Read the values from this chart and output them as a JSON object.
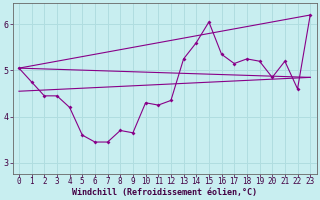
{
  "xlabel": "Windchill (Refroidissement éolien,°C)",
  "background_color": "#c8eef0",
  "grid_color": "#b0dde0",
  "line_color": "#880088",
  "ylim": [
    2.75,
    6.45
  ],
  "xlim": [
    -0.5,
    23.5
  ],
  "yticks": [
    3,
    4,
    5,
    6
  ],
  "xticks": [
    0,
    1,
    2,
    3,
    4,
    5,
    6,
    7,
    8,
    9,
    10,
    11,
    12,
    13,
    14,
    15,
    16,
    17,
    18,
    19,
    20,
    21,
    22,
    23
  ],
  "zigzag": {
    "x": [
      0,
      1,
      2,
      3,
      4,
      5,
      6,
      7,
      8,
      9,
      10,
      11,
      12,
      13,
      14,
      15,
      16,
      17,
      18,
      19,
      20,
      21,
      22,
      23
    ],
    "y": [
      5.05,
      4.75,
      4.45,
      4.45,
      4.2,
      3.6,
      3.45,
      3.45,
      3.7,
      3.65,
      4.3,
      4.25,
      4.35,
      5.25,
      5.6,
      6.05,
      5.35,
      5.15,
      5.25,
      5.2,
      4.85,
      5.2,
      4.6,
      6.2
    ]
  },
  "straight_lines": [
    {
      "x": [
        0,
        23
      ],
      "y": [
        5.05,
        6.2
      ]
    },
    {
      "x": [
        0,
        23
      ],
      "y": [
        5.05,
        4.85
      ]
    },
    {
      "x": [
        0,
        23
      ],
      "y": [
        4.55,
        4.85
      ]
    }
  ],
  "xlabel_fontsize": 6,
  "tick_fontsize": 5.5,
  "ytick_fontsize": 6
}
